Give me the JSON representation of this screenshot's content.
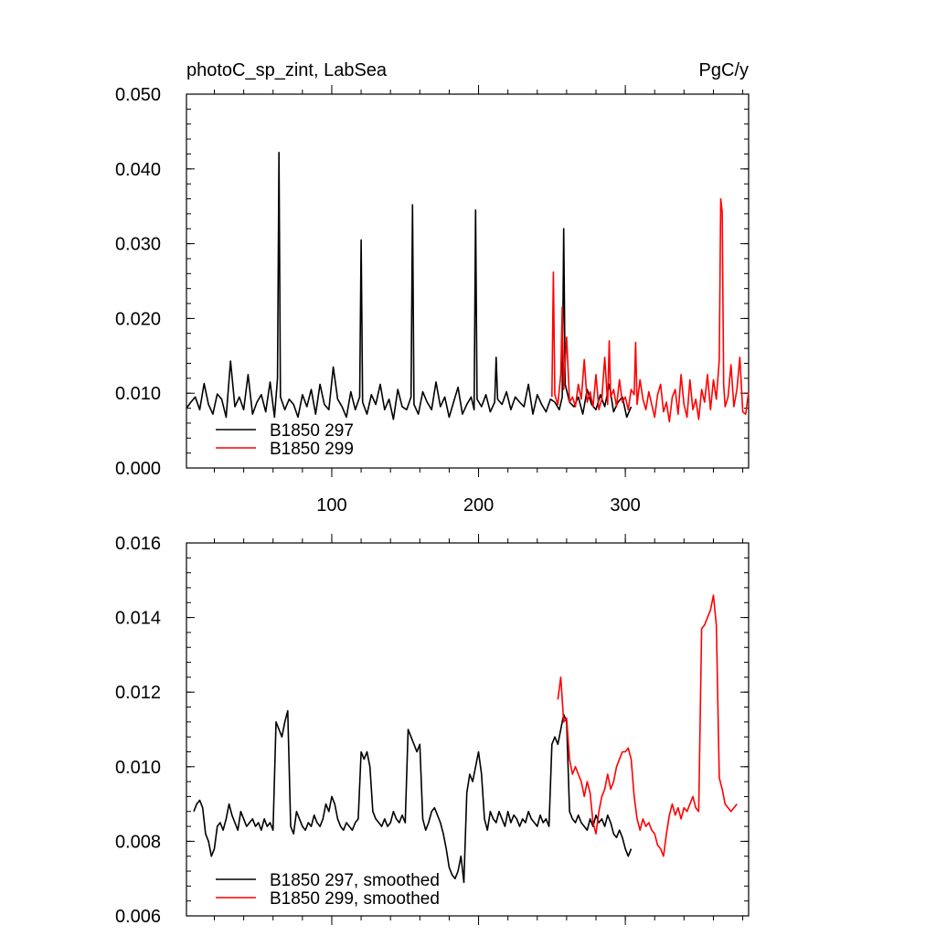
{
  "chart_data": [
    {
      "type": "line",
      "title_left": "photoC_sp_zint, LabSea",
      "title_right": "PgC/y",
      "xlim": [
        1,
        384
      ],
      "ylim": [
        0.0,
        0.05
      ],
      "yticks": [
        "0.000",
        "0.010",
        "0.020",
        "0.030",
        "0.040",
        "0.050"
      ],
      "yticks_values": [
        0.0,
        0.01,
        0.02,
        0.03,
        0.04,
        0.05
      ],
      "xticks": [
        "100",
        "200",
        "300"
      ],
      "xticks_values": [
        100,
        200,
        300
      ],
      "legend_location": "bottom-left",
      "series": [
        {
          "name": "B1850 297",
          "color": "#000000",
          "x": [
            1,
            4,
            7,
            10,
            13,
            16,
            19,
            22,
            25,
            28,
            31,
            34,
            37,
            40,
            43,
            46,
            49,
            52,
            55,
            58,
            61,
            63,
            64,
            65,
            68,
            71,
            74,
            77,
            80,
            83,
            86,
            89,
            92,
            95,
            98,
            101,
            104,
            107,
            110,
            113,
            116,
            119,
            120,
            121,
            124,
            127,
            130,
            133,
            136,
            139,
            142,
            145,
            148,
            151,
            154,
            155,
            156,
            159,
            162,
            165,
            168,
            171,
            174,
            177,
            180,
            183,
            186,
            189,
            192,
            195,
            197,
            198,
            199,
            202,
            205,
            208,
            211,
            212,
            213,
            216,
            219,
            222,
            225,
            228,
            231,
            234,
            237,
            240,
            243,
            246,
            249,
            252,
            255,
            257,
            258,
            259,
            262,
            265,
            268,
            271,
            274,
            277,
            280,
            283,
            286,
            289,
            292,
            295,
            298,
            301,
            304
          ],
          "y": [
            0.008,
            0.0088,
            0.0095,
            0.0078,
            0.0113,
            0.0085,
            0.0072,
            0.0099,
            0.0092,
            0.0068,
            0.0143,
            0.0082,
            0.0095,
            0.0078,
            0.0125,
            0.0072,
            0.0088,
            0.0098,
            0.0075,
            0.0115,
            0.0068,
            0.012,
            0.0422,
            0.0095,
            0.0078,
            0.0092,
            0.0085,
            0.0068,
            0.0098,
            0.0082,
            0.0105,
            0.0072,
            0.0112,
            0.0085,
            0.0078,
            0.0135,
            0.0092,
            0.0082,
            0.0068,
            0.0102,
            0.0078,
            0.0095,
            0.0305,
            0.0088,
            0.0072,
            0.0098,
            0.0085,
            0.0112,
            0.0078,
            0.0092,
            0.0065,
            0.0105,
            0.0082,
            0.0078,
            0.0095,
            0.0352,
            0.0085,
            0.0072,
            0.0102,
            0.0088,
            0.0078,
            0.0115,
            0.0082,
            0.0095,
            0.0068,
            0.0088,
            0.0108,
            0.0072,
            0.0085,
            0.0095,
            0.0078,
            0.0345,
            0.0092,
            0.0082,
            0.0098,
            0.0075,
            0.0088,
            0.0148,
            0.0092,
            0.0085,
            0.0102,
            0.0078,
            0.0095,
            0.0088,
            0.0082,
            0.0112,
            0.0072,
            0.0098,
            0.0085,
            0.0075,
            0.0092,
            0.0088,
            0.0078,
            0.0095,
            0.032,
            0.0112,
            0.0088,
            0.0082,
            0.0095,
            0.0072,
            0.0105,
            0.0085,
            0.0078,
            0.0098,
            0.0082,
            0.0112,
            0.0075,
            0.0088,
            0.0095,
            0.0068,
            0.0082
          ]
        },
        {
          "name": "B1850 299",
          "color": "#ff0000",
          "x": [
            250,
            251,
            252,
            254,
            256,
            257,
            258,
            260,
            262,
            264,
            266,
            268,
            270,
            272,
            274,
            276,
            278,
            280,
            282,
            284,
            286,
            288,
            289,
            290,
            292,
            294,
            296,
            298,
            300,
            302,
            304,
            306,
            307,
            308,
            310,
            312,
            314,
            316,
            318,
            320,
            322,
            324,
            326,
            328,
            330,
            332,
            334,
            336,
            338,
            340,
            342,
            344,
            346,
            348,
            350,
            352,
            354,
            356,
            358,
            360,
            362,
            364,
            365,
            366,
            367,
            368,
            370,
            372,
            374,
            376,
            378,
            380,
            382,
            384
          ],
          "y": [
            0.0095,
            0.0262,
            0.0098,
            0.0085,
            0.0125,
            0.0215,
            0.0105,
            0.0175,
            0.0088,
            0.0095,
            0.0082,
            0.0112,
            0.0092,
            0.0145,
            0.0088,
            0.0102,
            0.0082,
            0.0125,
            0.0078,
            0.0092,
            0.0148,
            0.0085,
            0.017,
            0.0095,
            0.0105,
            0.0082,
            0.0118,
            0.0088,
            0.0095,
            0.0078,
            0.0105,
            0.0098,
            0.0168,
            0.0085,
            0.0118,
            0.0092,
            0.0078,
            0.0102,
            0.0085,
            0.0068,
            0.0098,
            0.0112,
            0.0075,
            0.0088,
            0.0062,
            0.0095,
            0.0105,
            0.0072,
            0.0125,
            0.0085,
            0.0068,
            0.0118,
            0.0078,
            0.0092,
            0.0065,
            0.0105,
            0.0088,
            0.0125,
            0.0078,
            0.0118,
            0.0092,
            0.0145,
            0.036,
            0.0342,
            0.0112,
            0.0082,
            0.0095,
            0.0138,
            0.0082,
            0.0105,
            0.0148,
            0.0075,
            0.0072,
            0.0102
          ]
        }
      ]
    },
    {
      "type": "line",
      "xlim": [
        1,
        384
      ],
      "ylim": [
        0.006,
        0.016
      ],
      "yticks": [
        "0.006",
        "0.008",
        "0.010",
        "0.012",
        "0.014",
        "0.016"
      ],
      "yticks_values": [
        0.006,
        0.008,
        0.01,
        0.012,
        0.014,
        0.016
      ],
      "xticks_values": [
        100,
        200,
        300
      ],
      "legend_location": "bottom-left",
      "series": [
        {
          "name": "B1850 297, smoothed",
          "color": "#000000",
          "x": [
            6,
            8,
            10,
            12,
            14,
            16,
            18,
            20,
            22,
            24,
            26,
            28,
            30,
            32,
            34,
            36,
            38,
            40,
            42,
            44,
            46,
            48,
            50,
            52,
            54,
            56,
            58,
            60,
            62,
            64,
            66,
            68,
            70,
            72,
            74,
            76,
            78,
            80,
            82,
            84,
            86,
            88,
            90,
            92,
            94,
            96,
            98,
            100,
            102,
            104,
            106,
            108,
            110,
            112,
            114,
            116,
            118,
            120,
            122,
            124,
            126,
            128,
            130,
            132,
            134,
            136,
            138,
            140,
            142,
            144,
            146,
            148,
            150,
            152,
            154,
            156,
            158,
            160,
            162,
            164,
            166,
            168,
            170,
            172,
            174,
            176,
            178,
            180,
            182,
            184,
            186,
            188,
            190,
            192,
            194,
            196,
            198,
            200,
            202,
            204,
            206,
            208,
            210,
            212,
            214,
            216,
            218,
            220,
            222,
            224,
            226,
            228,
            230,
            232,
            234,
            236,
            238,
            240,
            242,
            244,
            246,
            248,
            250,
            252,
            254,
            256,
            258,
            260,
            262,
            264,
            266,
            268,
            270,
            272,
            274,
            276,
            278,
            280,
            282,
            284,
            286,
            288,
            290,
            292,
            294,
            296,
            298,
            300,
            302,
            304
          ],
          "y": [
            0.0088,
            0.009,
            0.0091,
            0.0089,
            0.0082,
            0.008,
            0.0076,
            0.0078,
            0.0084,
            0.0085,
            0.0083,
            0.0086,
            0.009,
            0.0087,
            0.0085,
            0.0083,
            0.0088,
            0.0086,
            0.0084,
            0.0085,
            0.0086,
            0.0084,
            0.0085,
            0.0083,
            0.0086,
            0.0084,
            0.0085,
            0.0083,
            0.0112,
            0.011,
            0.0108,
            0.0112,
            0.0115,
            0.0084,
            0.0082,
            0.0088,
            0.0086,
            0.0084,
            0.0083,
            0.0085,
            0.0084,
            0.0087,
            0.0085,
            0.0084,
            0.0086,
            0.009,
            0.0088,
            0.0092,
            0.009,
            0.0086,
            0.0084,
            0.0083,
            0.0085,
            0.0084,
            0.0083,
            0.0085,
            0.0086,
            0.0104,
            0.0102,
            0.0104,
            0.01,
            0.0088,
            0.0086,
            0.0085,
            0.0084,
            0.0086,
            0.0084,
            0.0085,
            0.0088,
            0.0086,
            0.0085,
            0.0087,
            0.0085,
            0.011,
            0.0108,
            0.0106,
            0.0104,
            0.0106,
            0.0086,
            0.0083,
            0.0085,
            0.0088,
            0.0089,
            0.0087,
            0.0085,
            0.0082,
            0.0078,
            0.0073,
            0.0071,
            0.007,
            0.0072,
            0.0076,
            0.0069,
            0.0093,
            0.0098,
            0.0096,
            0.01,
            0.0104,
            0.0098,
            0.0086,
            0.0083,
            0.0088,
            0.0086,
            0.0085,
            0.0088,
            0.0086,
            0.0084,
            0.0088,
            0.0085,
            0.0087,
            0.0086,
            0.0084,
            0.0086,
            0.0085,
            0.0088,
            0.0086,
            0.0085,
            0.0084,
            0.0087,
            0.0085,
            0.0086,
            0.0084,
            0.0106,
            0.0108,
            0.0106,
            0.011,
            0.0114,
            0.0112,
            0.0088,
            0.0086,
            0.0085,
            0.0087,
            0.0085,
            0.0084,
            0.0083,
            0.0086,
            0.0084,
            0.0087,
            0.0085,
            0.0086,
            0.0084,
            0.0087,
            0.0085,
            0.0082,
            0.0081,
            0.0083,
            0.0081,
            0.0078,
            0.0076,
            0.0078
          ]
        },
        {
          "name": "B1850 299, smoothed",
          "color": "#ff0000",
          "x": [
            254,
            256,
            258,
            260,
            262,
            264,
            266,
            268,
            270,
            272,
            274,
            276,
            278,
            280,
            282,
            284,
            286,
            288,
            290,
            292,
            294,
            296,
            298,
            300,
            302,
            304,
            306,
            308,
            310,
            312,
            314,
            316,
            318,
            320,
            322,
            324,
            326,
            328,
            330,
            332,
            334,
            336,
            338,
            340,
            342,
            344,
            346,
            348,
            350,
            352,
            354,
            356,
            358,
            360,
            362,
            364,
            366,
            368,
            370,
            372,
            374,
            376
          ],
          "y": [
            0.0118,
            0.0124,
            0.0112,
            0.0113,
            0.0102,
            0.0098,
            0.01,
            0.0098,
            0.0096,
            0.0092,
            0.0096,
            0.0093,
            0.0085,
            0.0082,
            0.0088,
            0.0092,
            0.0094,
            0.0098,
            0.0094,
            0.0096,
            0.01,
            0.0102,
            0.0104,
            0.0104,
            0.0105,
            0.0102,
            0.0092,
            0.0086,
            0.0083,
            0.0086,
            0.0084,
            0.0085,
            0.0083,
            0.0082,
            0.0079,
            0.0078,
            0.0076,
            0.0082,
            0.0087,
            0.009,
            0.0087,
            0.0089,
            0.0086,
            0.0089,
            0.0088,
            0.009,
            0.0092,
            0.0089,
            0.0088,
            0.0137,
            0.0138,
            0.014,
            0.0142,
            0.0146,
            0.0138,
            0.0097,
            0.0094,
            0.009,
            0.0089,
            0.0088,
            0.0089,
            0.009
          ]
        }
      ]
    }
  ]
}
